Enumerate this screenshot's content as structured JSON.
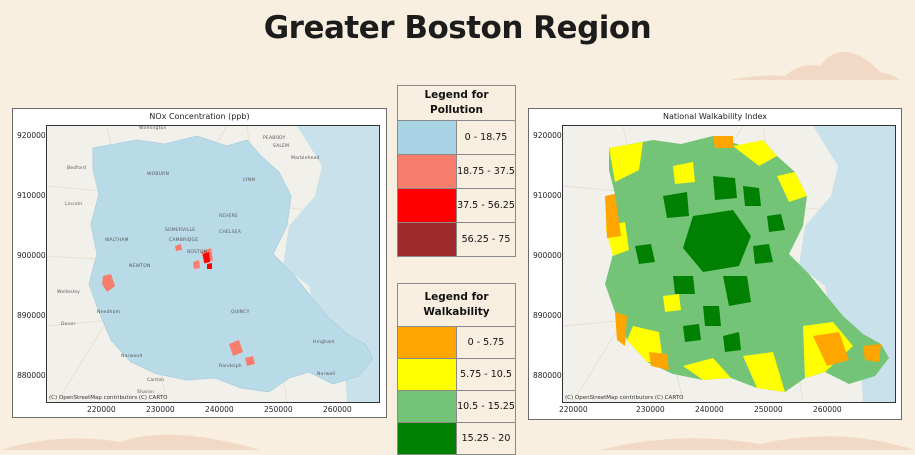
{
  "page": {
    "title": "Greater Boston Region"
  },
  "maps": [
    {
      "title": "NOx Concentration (ppb)",
      "attribution": "(C) OpenStreetMap contributors (C) CARTO",
      "y_ticks": [
        "920000",
        "910000",
        "900000",
        "890000",
        "880000"
      ],
      "x_ticks": [
        "220000",
        "230000",
        "240000",
        "250000",
        "260000"
      ]
    },
    {
      "title": "National Walkability Index",
      "attribution": "(C) OpenStreetMap contributors (C) CARTO",
      "y_ticks": [
        "920000",
        "910000",
        "900000",
        "890000",
        "880000"
      ],
      "x_ticks": [
        "220000",
        "230000",
        "240000",
        "250000",
        "260000"
      ]
    }
  ],
  "legends": {
    "pollution": {
      "title": "Legend for Pollution",
      "rows": [
        {
          "range": "0 - 18.75",
          "color": "#a7d3e4"
        },
        {
          "range": "18.75 - 37.5",
          "color": "#f77e6d"
        },
        {
          "range": "37.5 - 56.25",
          "color": "#fe0000"
        },
        {
          "range": "56.25 - 75",
          "color": "#9e2a2b"
        }
      ]
    },
    "walkability": {
      "title": "Legend for Walkability",
      "rows": [
        {
          "range": "0 - 5.75",
          "color": "#ffa500"
        },
        {
          "range": "5.75 - 10.5",
          "color": "#ffff00"
        },
        {
          "range": "10.5 - 15.25",
          "color": "#73c476"
        },
        {
          "range": "15.25 - 20",
          "color": "#008000"
        }
      ]
    }
  },
  "place_labels": [
    "Wilmington",
    "PEABODY",
    "SALEM",
    "Marblehead",
    "Bedford",
    "WOBURN",
    "LYNN",
    "Lincoln",
    "REVERE",
    "WALTHAM",
    "SOMERVILLE",
    "CHELSEA",
    "CAMBRIDGE",
    "BOSTON",
    "NEWTON",
    "Wellesley",
    "QUINCY",
    "Needham",
    "Dover",
    "Hingham",
    "Norwood",
    "Randolph",
    "Canton",
    "Sharon",
    "Norwell"
  ]
}
